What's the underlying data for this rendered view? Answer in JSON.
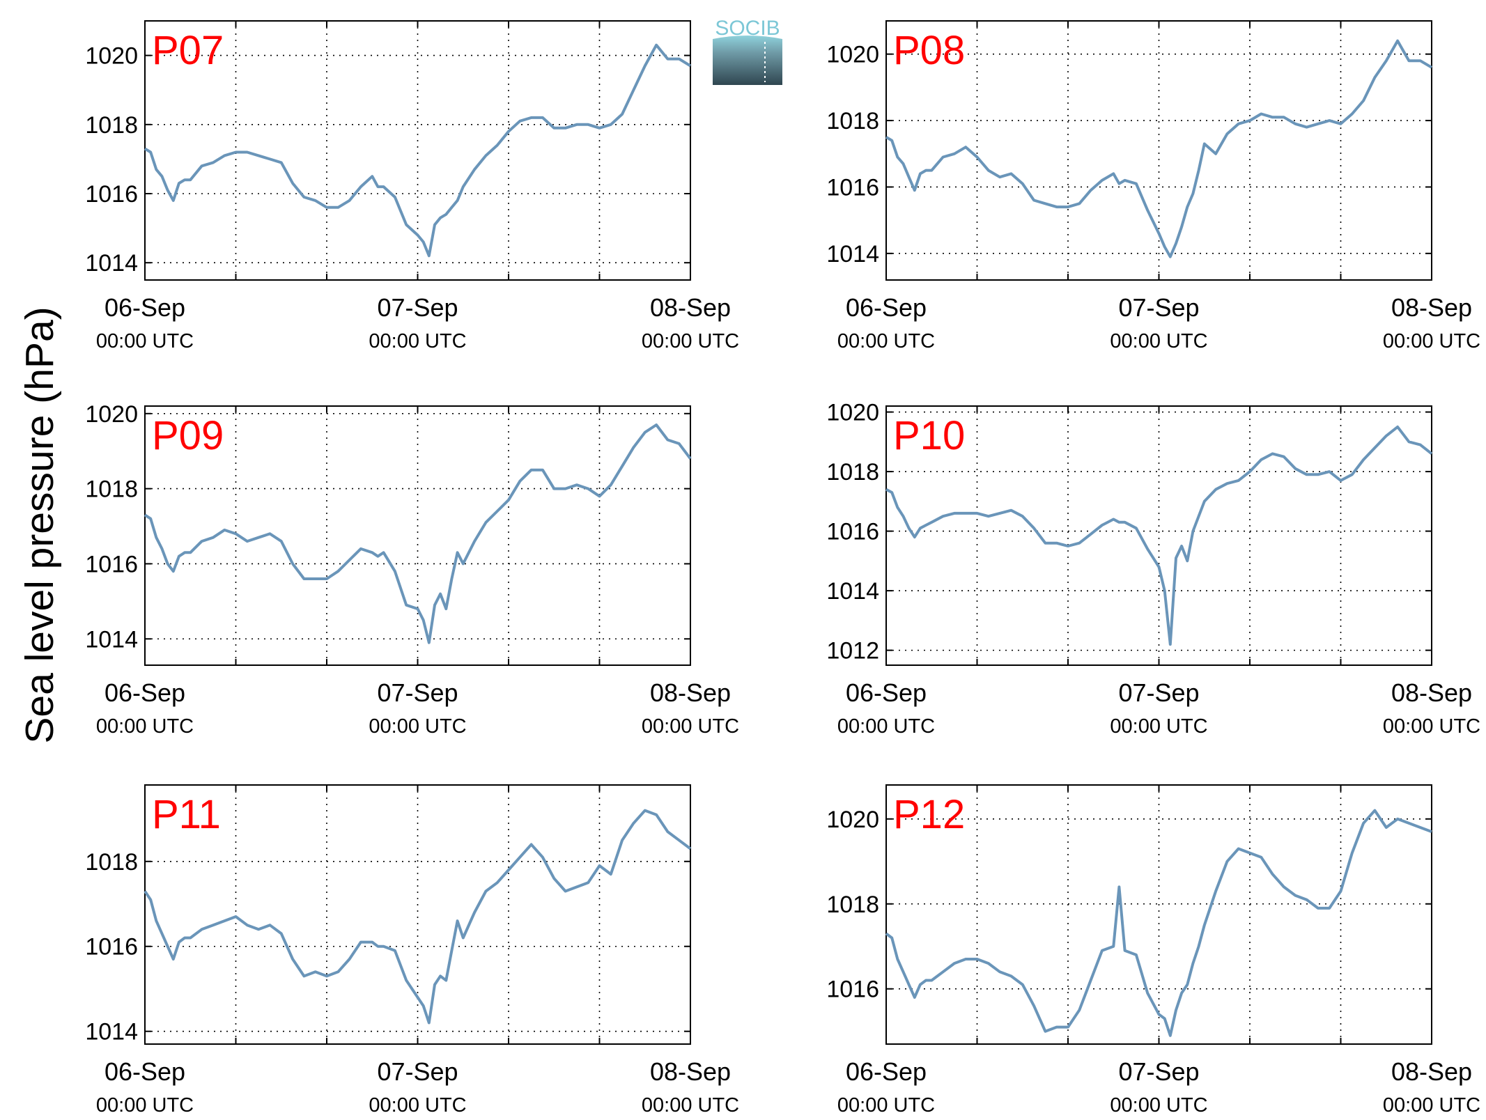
{
  "figure": {
    "ylabel": "Sea level pressure (hPa)",
    "logo_text": "SOCIB",
    "line_color": "#6a95b9",
    "label_color": "#ff0000"
  },
  "chart_data": [
    {
      "type": "line",
      "label": "P07",
      "x_ticks": [
        {
          "date": "06-Sep",
          "time": "00:00 UTC"
        },
        {
          "date": "07-Sep",
          "time": "00:00 UTC"
        },
        {
          "date": "08-Sep",
          "time": "00:00 UTC"
        }
      ],
      "xlim_hours": [
        0,
        48
      ],
      "ylim": [
        1013.5,
        1021.0
      ],
      "yticks": [
        1014,
        1016,
        1018,
        1020
      ],
      "grid": true,
      "series": [
        {
          "x": [
            0,
            0.5,
            1,
            1.5,
            2,
            2.5,
            3,
            3.5,
            4,
            5,
            6,
            7,
            8,
            9,
            10,
            11,
            12,
            13,
            14,
            15,
            16,
            17,
            18,
            19,
            20,
            20.5,
            21,
            22,
            23,
            24,
            24.5,
            25,
            25.5,
            26,
            26.5,
            27,
            27.5,
            28,
            29,
            30,
            31,
            32,
            33,
            34,
            35,
            36,
            37,
            38,
            39,
            40,
            41,
            42,
            43,
            44,
            45,
            46,
            47,
            48
          ],
          "y": [
            1017.3,
            1017.2,
            1016.7,
            1016.5,
            1016.1,
            1015.8,
            1016.3,
            1016.4,
            1016.4,
            1016.8,
            1016.9,
            1017.1,
            1017.2,
            1017.2,
            1017.1,
            1017.0,
            1016.9,
            1016.3,
            1015.9,
            1015.8,
            1015.6,
            1015.6,
            1015.8,
            1016.2,
            1016.5,
            1016.2,
            1016.2,
            1015.9,
            1015.1,
            1014.8,
            1014.6,
            1014.2,
            1015.1,
            1015.3,
            1015.4,
            1015.6,
            1015.8,
            1016.2,
            1016.7,
            1017.1,
            1017.4,
            1017.8,
            1018.1,
            1018.2,
            1018.2,
            1017.9,
            1017.9,
            1018.0,
            1018.0,
            1017.9,
            1018.0,
            1018.3,
            1019.0,
            1019.7,
            1020.3,
            1019.9,
            1019.9,
            1019.7
          ]
        }
      ]
    },
    {
      "type": "line",
      "label": "P08",
      "x_ticks": [
        {
          "date": "06-Sep",
          "time": "00:00 UTC"
        },
        {
          "date": "07-Sep",
          "time": "00:00 UTC"
        },
        {
          "date": "08-Sep",
          "time": "00:00 UTC"
        }
      ],
      "xlim_hours": [
        0,
        48
      ],
      "ylim": [
        1013.2,
        1021.0
      ],
      "yticks": [
        1014,
        1016,
        1018,
        1020
      ],
      "grid": true,
      "series": [
        {
          "x": [
            0,
            0.5,
            1,
            1.5,
            2,
            2.5,
            3,
            3.5,
            4,
            5,
            6,
            7,
            8,
            9,
            10,
            11,
            12,
            13,
            14,
            15,
            16,
            17,
            18,
            19,
            20,
            20.5,
            21,
            22,
            23,
            24,
            24.5,
            25,
            25.5,
            26,
            26.5,
            27,
            27.5,
            28,
            29,
            30,
            31,
            32,
            33,
            34,
            35,
            36,
            37,
            38,
            39,
            40,
            41,
            42,
            43,
            44,
            45,
            46,
            47,
            48
          ],
          "y": [
            1017.5,
            1017.4,
            1016.9,
            1016.7,
            1016.3,
            1015.9,
            1016.4,
            1016.5,
            1016.5,
            1016.9,
            1017.0,
            1017.2,
            1016.9,
            1016.5,
            1016.3,
            1016.4,
            1016.1,
            1015.6,
            1015.5,
            1015.4,
            1015.4,
            1015.5,
            1015.9,
            1016.2,
            1016.4,
            1016.1,
            1016.2,
            1016.1,
            1015.3,
            1014.6,
            1014.2,
            1013.9,
            1014.3,
            1014.8,
            1015.4,
            1015.8,
            1016.5,
            1017.3,
            1017.0,
            1017.6,
            1017.9,
            1018.0,
            1018.2,
            1018.1,
            1018.1,
            1017.9,
            1017.8,
            1017.9,
            1018.0,
            1017.9,
            1018.2,
            1018.6,
            1019.3,
            1019.8,
            1020.4,
            1019.8,
            1019.8,
            1019.6
          ]
        }
      ]
    },
    {
      "type": "line",
      "label": "P09",
      "x_ticks": [
        {
          "date": "06-Sep",
          "time": "00:00 UTC"
        },
        {
          "date": "07-Sep",
          "time": "00:00 UTC"
        },
        {
          "date": "08-Sep",
          "time": "00:00 UTC"
        }
      ],
      "xlim_hours": [
        0,
        48
      ],
      "ylim": [
        1013.3,
        1020.2
      ],
      "yticks": [
        1014,
        1016,
        1018,
        1020
      ],
      "grid": true,
      "series": [
        {
          "x": [
            0,
            0.5,
            1,
            1.5,
            2,
            2.5,
            3,
            3.5,
            4,
            5,
            6,
            7,
            8,
            9,
            10,
            11,
            12,
            13,
            14,
            15,
            16,
            17,
            18,
            19,
            20,
            20.5,
            21,
            22,
            23,
            24,
            24.5,
            25,
            25.5,
            26,
            26.5,
            27,
            27.5,
            28,
            29,
            30,
            31,
            32,
            33,
            34,
            35,
            36,
            37,
            38,
            39,
            40,
            41,
            42,
            43,
            44,
            45,
            46,
            47,
            48
          ],
          "y": [
            1017.3,
            1017.2,
            1016.7,
            1016.4,
            1016.0,
            1015.8,
            1016.2,
            1016.3,
            1016.3,
            1016.6,
            1016.7,
            1016.9,
            1016.8,
            1016.6,
            1016.7,
            1016.8,
            1016.6,
            1016.0,
            1015.6,
            1015.6,
            1015.6,
            1015.8,
            1016.1,
            1016.4,
            1016.3,
            1016.2,
            1016.3,
            1015.8,
            1014.9,
            1014.8,
            1014.5,
            1013.9,
            1014.9,
            1015.2,
            1014.8,
            1015.6,
            1016.3,
            1016.0,
            1016.6,
            1017.1,
            1017.4,
            1017.7,
            1018.2,
            1018.5,
            1018.5,
            1018.0,
            1018.0,
            1018.1,
            1018.0,
            1017.8,
            1018.1,
            1018.6,
            1019.1,
            1019.5,
            1019.7,
            1019.3,
            1019.2,
            1018.8
          ]
        }
      ]
    },
    {
      "type": "line",
      "label": "P10",
      "x_ticks": [
        {
          "date": "06-Sep",
          "time": "00:00 UTC"
        },
        {
          "date": "07-Sep",
          "time": "00:00 UTC"
        },
        {
          "date": "08-Sep",
          "time": "00:00 UTC"
        }
      ],
      "xlim_hours": [
        0,
        48
      ],
      "ylim": [
        1011.5,
        1020.2
      ],
      "yticks": [
        1012,
        1014,
        1016,
        1018,
        1020
      ],
      "grid": true,
      "series": [
        {
          "x": [
            0,
            0.5,
            1,
            1.5,
            2,
            2.5,
            3,
            3.5,
            4,
            5,
            6,
            7,
            8,
            9,
            10,
            11,
            12,
            13,
            14,
            15,
            16,
            17,
            18,
            19,
            20,
            20.5,
            21,
            22,
            23,
            24,
            24.5,
            25,
            25.5,
            26,
            26.5,
            27,
            27.5,
            28,
            29,
            30,
            31,
            32,
            33,
            34,
            35,
            36,
            37,
            38,
            39,
            40,
            41,
            42,
            43,
            44,
            45,
            46,
            47,
            48
          ],
          "y": [
            1017.4,
            1017.3,
            1016.8,
            1016.5,
            1016.1,
            1015.8,
            1016.1,
            1016.2,
            1016.3,
            1016.5,
            1016.6,
            1016.6,
            1016.6,
            1016.5,
            1016.6,
            1016.7,
            1016.5,
            1016.1,
            1015.6,
            1015.6,
            1015.5,
            1015.6,
            1015.9,
            1016.2,
            1016.4,
            1016.3,
            1016.3,
            1016.1,
            1015.4,
            1014.8,
            1014.0,
            1012.2,
            1015.1,
            1015.5,
            1015.0,
            1016.0,
            1016.5,
            1017.0,
            1017.4,
            1017.6,
            1017.7,
            1018.0,
            1018.4,
            1018.6,
            1018.5,
            1018.1,
            1017.9,
            1017.9,
            1018.0,
            1017.7,
            1017.9,
            1018.4,
            1018.8,
            1019.2,
            1019.5,
            1019.0,
            1018.9,
            1018.6
          ]
        }
      ]
    },
    {
      "type": "line",
      "label": "P11",
      "x_ticks": [
        {
          "date": "06-Sep",
          "time": "00:00 UTC"
        },
        {
          "date": "07-Sep",
          "time": "00:00 UTC"
        },
        {
          "date": "08-Sep",
          "time": "00:00 UTC"
        }
      ],
      "xlim_hours": [
        0,
        48
      ],
      "ylim": [
        1013.7,
        1019.8
      ],
      "yticks": [
        1014,
        1016,
        1018
      ],
      "grid": true,
      "series": [
        {
          "x": [
            0,
            0.5,
            1,
            1.5,
            2,
            2.5,
            3,
            3.5,
            4,
            5,
            6,
            7,
            8,
            9,
            10,
            11,
            12,
            13,
            14,
            15,
            16,
            17,
            18,
            19,
            20,
            20.5,
            21,
            22,
            23,
            24,
            24.5,
            25,
            25.5,
            26,
            26.5,
            27,
            27.5,
            28,
            29,
            30,
            31,
            32,
            33,
            34,
            35,
            36,
            37,
            38,
            39,
            40,
            41,
            42,
            43,
            44,
            45,
            46,
            47,
            48
          ],
          "y": [
            1017.3,
            1017.1,
            1016.6,
            1016.3,
            1016.0,
            1015.7,
            1016.1,
            1016.2,
            1016.2,
            1016.4,
            1016.5,
            1016.6,
            1016.7,
            1016.5,
            1016.4,
            1016.5,
            1016.3,
            1015.7,
            1015.3,
            1015.4,
            1015.3,
            1015.4,
            1015.7,
            1016.1,
            1016.1,
            1016.0,
            1016.0,
            1015.9,
            1015.2,
            1014.8,
            1014.6,
            1014.2,
            1015.1,
            1015.3,
            1015.2,
            1015.9,
            1016.6,
            1016.2,
            1016.8,
            1017.3,
            1017.5,
            1017.8,
            1018.1,
            1018.4,
            1018.1,
            1017.6,
            1017.3,
            1017.4,
            1017.5,
            1017.9,
            1017.7,
            1018.5,
            1018.9,
            1019.2,
            1019.1,
            1018.7,
            1018.5,
            1018.3
          ]
        }
      ]
    },
    {
      "type": "line",
      "label": "P12",
      "x_ticks": [
        {
          "date": "06-Sep",
          "time": "00:00 UTC"
        },
        {
          "date": "07-Sep",
          "time": "00:00 UTC"
        },
        {
          "date": "08-Sep",
          "time": "00:00 UTC"
        }
      ],
      "xlim_hours": [
        0,
        48
      ],
      "ylim": [
        1014.7,
        1020.8
      ],
      "yticks": [
        1016,
        1018,
        1020
      ],
      "grid": true,
      "series": [
        {
          "x": [
            0,
            0.5,
            1,
            1.5,
            2,
            2.5,
            3,
            3.5,
            4,
            5,
            6,
            7,
            8,
            9,
            10,
            11,
            12,
            13,
            14,
            15,
            16,
            17,
            18,
            19,
            20,
            20.5,
            21,
            22,
            23,
            24,
            24.5,
            25,
            25.5,
            26,
            26.5,
            27,
            27.5,
            28,
            29,
            30,
            31,
            32,
            33,
            34,
            35,
            36,
            37,
            38,
            39,
            40,
            41,
            42,
            43,
            44,
            45,
            46,
            47,
            48
          ],
          "y": [
            1017.3,
            1017.2,
            1016.7,
            1016.4,
            1016.1,
            1015.8,
            1016.1,
            1016.2,
            1016.2,
            1016.4,
            1016.6,
            1016.7,
            1016.7,
            1016.6,
            1016.4,
            1016.3,
            1016.1,
            1015.6,
            1015.0,
            1015.1,
            1015.1,
            1015.5,
            1016.2,
            1016.9,
            1017.0,
            1018.4,
            1016.9,
            1016.8,
            1015.9,
            1015.4,
            1015.3,
            1014.9,
            1015.5,
            1015.9,
            1016.1,
            1016.6,
            1017.0,
            1017.5,
            1018.3,
            1019.0,
            1019.3,
            1019.2,
            1019.1,
            1018.7,
            1018.4,
            1018.2,
            1018.1,
            1017.9,
            1017.9,
            1018.3,
            1019.2,
            1019.9,
            1020.2,
            1019.8,
            1020.0,
            1019.9,
            1019.8,
            1019.7
          ]
        }
      ]
    }
  ]
}
